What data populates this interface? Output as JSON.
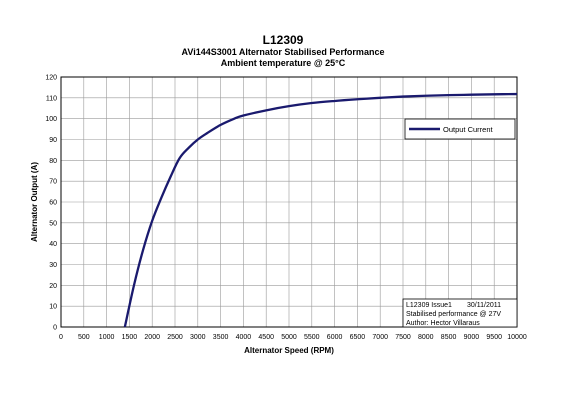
{
  "chart_data": {
    "type": "line",
    "title": "L12309",
    "subtitle": "AVi144S3001 Alternator Stabilised Performance",
    "subtitle2": "Ambient temperature @ 25°C",
    "xlabel": "Alternator Speed (RPM)",
    "ylabel": "Alternator Output (A)",
    "xlim": [
      0,
      10000
    ],
    "ylim": [
      0,
      120
    ],
    "xticks": [
      0,
      500,
      1000,
      1500,
      2000,
      2500,
      3000,
      3500,
      4000,
      4500,
      5000,
      5500,
      6000,
      6500,
      7000,
      7500,
      8000,
      8500,
      9000,
      9500,
      10000
    ],
    "yticks": [
      0,
      10,
      20,
      30,
      40,
      50,
      60,
      70,
      80,
      90,
      100,
      110,
      120
    ],
    "grid": true,
    "legend_position": "top-right",
    "series": [
      {
        "name": "Output Current",
        "color": "#1a1a6e",
        "x": [
          1400,
          1600,
          1800,
          2000,
          2200,
          2400,
          2600,
          2800,
          3000,
          3200,
          3500,
          3800,
          4000,
          4500,
          5000,
          5500,
          6000,
          6500,
          7000,
          7500,
          8000,
          8500,
          9000,
          9500,
          10000
        ],
        "y": [
          0,
          20,
          37,
          51,
          62,
          72,
          81,
          86,
          90,
          93,
          97,
          100,
          101.5,
          104,
          106,
          107.5,
          108.5,
          109.3,
          110,
          110.6,
          111,
          111.3,
          111.5,
          111.7,
          111.8
        ]
      }
    ],
    "info_box": [
      {
        "left": "L12309 Issue1",
        "right": "30/11/2011"
      },
      {
        "left": "Stabilised performance @ 27V",
        "right": ""
      },
      {
        "left": "Author: Hector Villaraus",
        "right": ""
      }
    ]
  }
}
